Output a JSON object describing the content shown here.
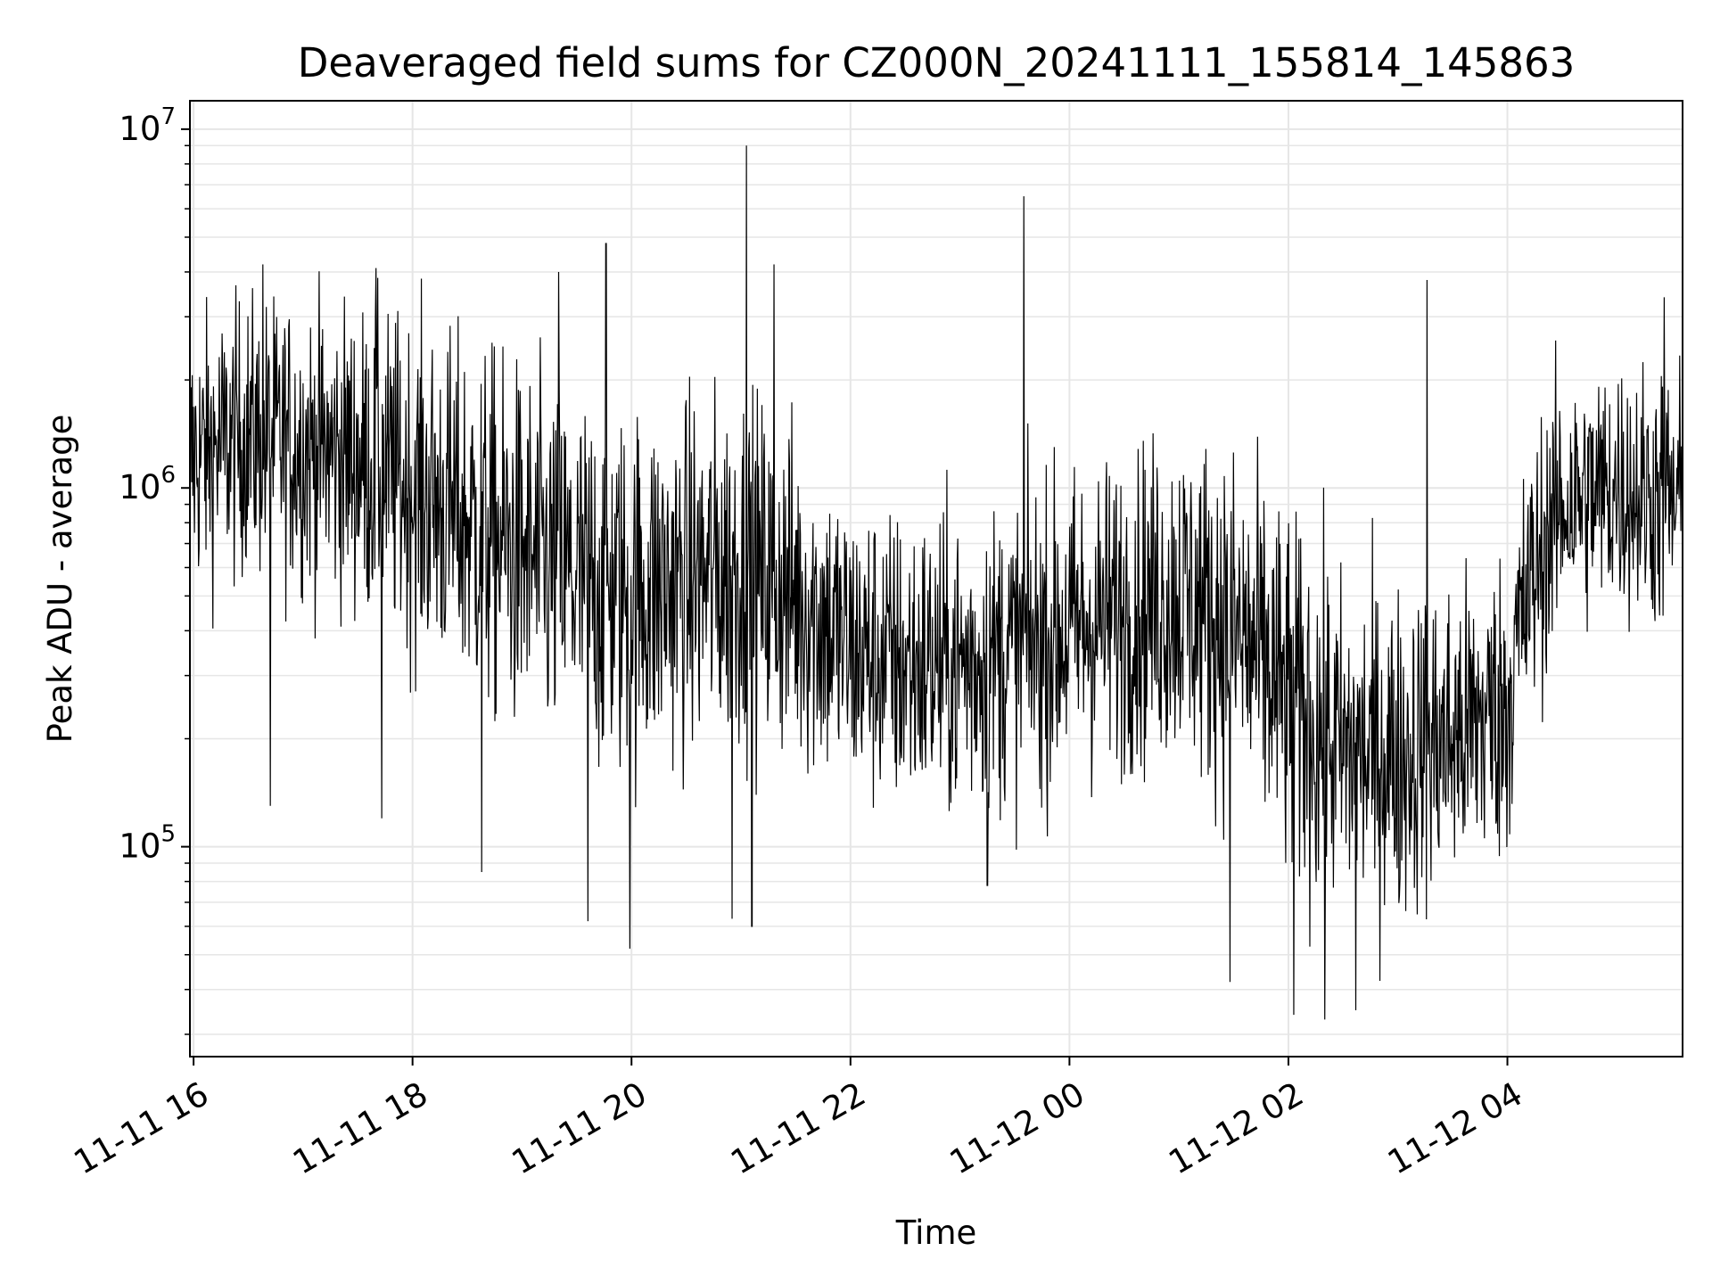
{
  "chart_data": {
    "type": "line",
    "title": "Deaveraged field sums for CZ000N_20241111_155814_145863",
    "xlabel": "Time",
    "ylabel": "Peak ADU - average",
    "y_scale": "log",
    "ylim": [
      26000,
      12000000
    ],
    "xlim": [
      "2024-11-11 15:58",
      "2024-11-12 05:36"
    ],
    "grid": true,
    "line_color": "#000000",
    "grid_color": "#e6e6e6",
    "x_ticks": [
      {
        "t": "2024-11-11 16:00",
        "label": "11-11 16"
      },
      {
        "t": "2024-11-11 18:00",
        "label": "11-11 18"
      },
      {
        "t": "2024-11-11 20:00",
        "label": "11-11 20"
      },
      {
        "t": "2024-11-11 22:00",
        "label": "11-11 22"
      },
      {
        "t": "2024-11-12 00:00",
        "label": "11-12 00"
      },
      {
        "t": "2024-11-12 02:00",
        "label": "11-12 02"
      },
      {
        "t": "2024-11-12 04:00",
        "label": "11-12 04"
      }
    ],
    "y_ticks": [
      {
        "value": 100000,
        "base": "10",
        "exp": "5"
      },
      {
        "value": 1000000,
        "base": "10",
        "exp": "6"
      },
      {
        "value": 10000000,
        "base": "10",
        "exp": "7"
      }
    ],
    "series": [
      {
        "times": [
          "2024-11-11 15:58",
          "2024-11-11 16:30",
          "2024-11-11 17:00",
          "2024-11-11 17:30",
          "2024-11-11 18:00",
          "2024-11-11 18:30",
          "2024-11-11 19:00",
          "2024-11-11 19:30",
          "2024-11-11 20:00",
          "2024-11-11 20:30",
          "2024-11-11 21:00",
          "2024-11-11 21:30",
          "2024-11-11 22:00",
          "2024-11-11 22:30",
          "2024-11-11 23:00",
          "2024-11-11 23:30",
          "2024-11-12 00:00",
          "2024-11-12 00:30",
          "2024-11-12 01:00",
          "2024-11-12 01:30",
          "2024-11-12 02:00",
          "2024-11-12 02:30",
          "2024-11-12 03:00",
          "2024-11-12 03:30",
          "2024-11-12 04:00",
          "2024-11-12 04:30",
          "2024-11-12 05:00",
          "2024-11-12 05:36"
        ],
        "center": [
          1200000,
          1400000,
          1300000,
          1200000,
          1000000,
          800000,
          650000,
          550000,
          500000,
          550000,
          600000,
          500000,
          350000,
          320000,
          320000,
          350000,
          400000,
          450000,
          500000,
          400000,
          250000,
          180000,
          180000,
          200000,
          250000,
          900000,
          1000000,
          900000
        ],
        "spread": [
          2.2,
          2.2,
          2.3,
          2.4,
          2.6,
          2.8,
          2.9,
          2.9,
          2.9,
          2.8,
          2.8,
          2.7,
          2.4,
          2.4,
          2.4,
          2.4,
          2.5,
          2.5,
          2.6,
          2.8,
          2.9,
          2.7,
          2.6,
          2.5,
          2.4,
          2.1,
          2.1,
          2.2
        ],
        "spikes": [
          {
            "t": "2024-11-11 16:38",
            "value": 4200000
          },
          {
            "t": "2024-11-11 17:40",
            "value": 4100000
          },
          {
            "t": "2024-11-11 19:20",
            "value": 4000000
          },
          {
            "t": "2024-11-11 19:46",
            "value": 4800000
          },
          {
            "t": "2024-11-11 21:03",
            "value": 9000000
          },
          {
            "t": "2024-11-11 21:18",
            "value": 4200000
          },
          {
            "t": "2024-11-11 23:35",
            "value": 6500000
          },
          {
            "t": "2024-11-12 03:16",
            "value": 3800000
          },
          {
            "t": "2024-11-12 05:26",
            "value": 3400000
          },
          {
            "t": "2024-11-11 16:42",
            "value": 130000
          },
          {
            "t": "2024-11-11 17:43",
            "value": 120000
          },
          {
            "t": "2024-11-11 18:38",
            "value": 85000
          },
          {
            "t": "2024-11-11 19:36",
            "value": 62000
          },
          {
            "t": "2024-11-11 19:59",
            "value": 52000
          },
          {
            "t": "2024-11-11 20:55",
            "value": 63000
          },
          {
            "t": "2024-11-11 21:06",
            "value": 60000
          },
          {
            "t": "2024-11-11 23:15",
            "value": 78000
          },
          {
            "t": "2024-11-12 01:28",
            "value": 42000
          },
          {
            "t": "2024-11-12 02:03",
            "value": 34000
          },
          {
            "t": "2024-11-12 02:20",
            "value": 33000
          },
          {
            "t": "2024-11-12 02:37",
            "value": 35000
          }
        ]
      }
    ]
  }
}
